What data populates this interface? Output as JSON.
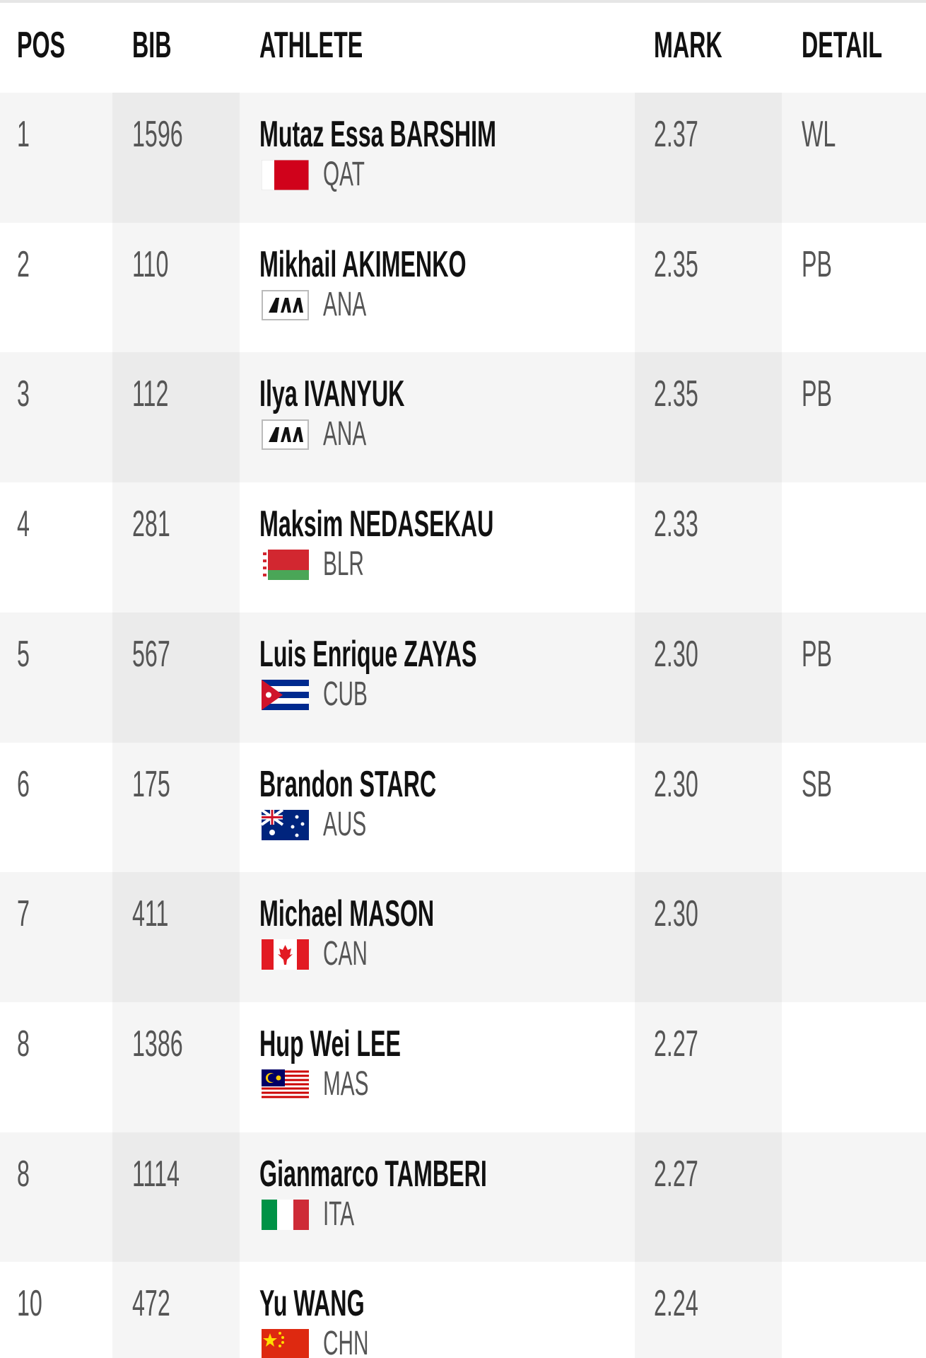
{
  "table": {
    "columns": [
      "POS",
      "BIB",
      "ATHLETE",
      "MARK",
      "DETAIL"
    ],
    "rows": [
      {
        "pos": "1",
        "bib": "1596",
        "athlete": "Mutaz Essa BARSHIM",
        "country": "QAT",
        "mark": "2.37",
        "detail": "WL"
      },
      {
        "pos": "2",
        "bib": "110",
        "athlete": "Mikhail AKIMENKO",
        "country": "ANA",
        "mark": "2.35",
        "detail": "PB"
      },
      {
        "pos": "3",
        "bib": "112",
        "athlete": "Ilya IVANYUK",
        "country": "ANA",
        "mark": "2.35",
        "detail": "PB"
      },
      {
        "pos": "4",
        "bib": "281",
        "athlete": "Maksim NEDASEKAU",
        "country": "BLR",
        "mark": "2.33"
      },
      {
        "pos": "5",
        "bib": "567",
        "athlete": "Luis Enrique ZAYAS",
        "country": "CUB",
        "mark": "2.30",
        "detail": "PB"
      },
      {
        "pos": "6",
        "bib": "175",
        "athlete": "Brandon STARC",
        "country": "AUS",
        "mark": "2.30",
        "detail": "SB"
      },
      {
        "pos": "7",
        "bib": "411",
        "athlete": "Michael MASON",
        "country": "CAN",
        "mark": "2.30"
      },
      {
        "pos": "8",
        "bib": "1386",
        "athlete": "Hup Wei LEE",
        "country": "MAS",
        "mark": "2.27"
      },
      {
        "pos": "8",
        "bib": "1114",
        "athlete": "Gianmarco TAMBERI",
        "country": "ITA",
        "mark": "2.27"
      },
      {
        "pos": "10",
        "bib": "472",
        "athlete": "Yu WANG",
        "country": "CHN",
        "mark": "2.24"
      }
    ]
  }
}
